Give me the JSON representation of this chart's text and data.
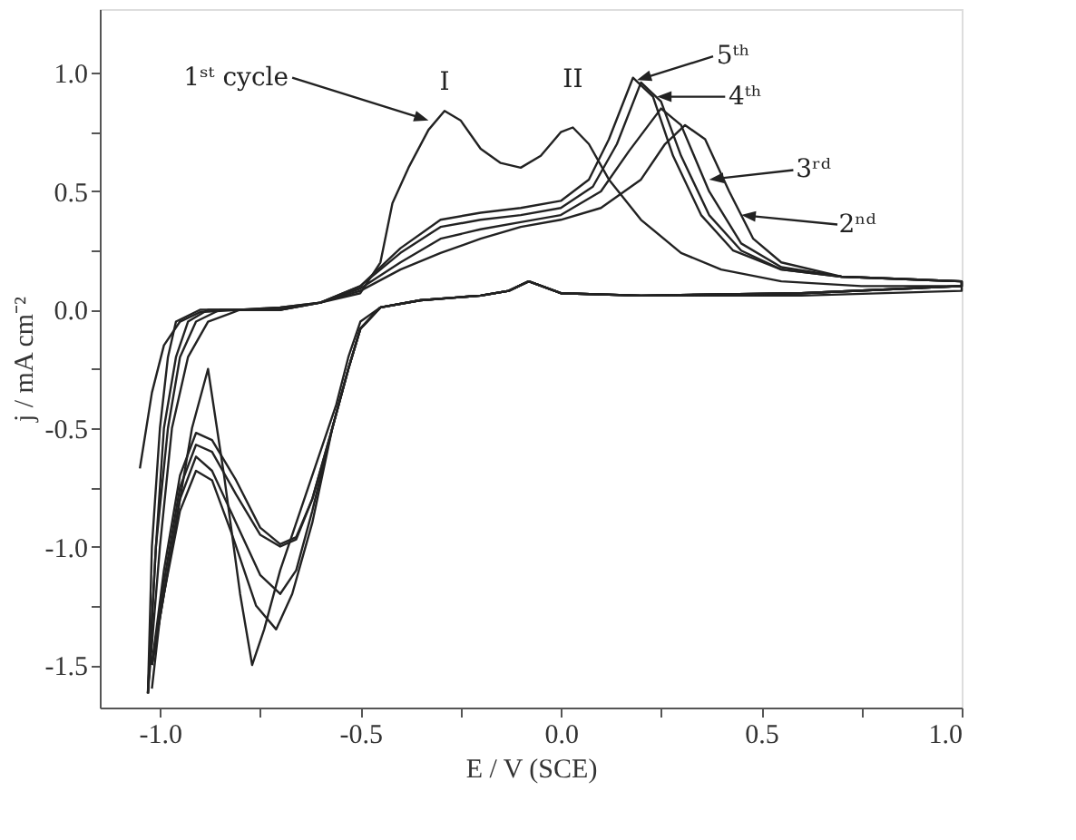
{
  "chart_data": {
    "type": "line",
    "xlabel": "E / V (SCE)",
    "ylabel": "j / mA cm⁻²",
    "xlim": [
      -1.15,
      1.0
    ],
    "ylim": [
      -1.68,
      1.27
    ],
    "xticks": [
      {
        "value": -1,
        "label": "-1.0"
      },
      {
        "value": -0.75,
        "label": null
      },
      {
        "value": -0.5,
        "label": "-0.5"
      },
      {
        "value": -0.25,
        "label": null
      },
      {
        "value": 0,
        "label": "0.0"
      },
      {
        "value": 0.25,
        "label": null
      },
      {
        "value": 0.5,
        "label": "0.5"
      },
      {
        "value": 0.75,
        "label": null
      },
      {
        "value": 1,
        "label": "1.0"
      }
    ],
    "yticks": [
      {
        "value": -1.5,
        "label": "-1.5"
      },
      {
        "value": -1.25,
        "label": null
      },
      {
        "value": -1,
        "label": "-1.0"
      },
      {
        "value": -0.75,
        "label": null
      },
      {
        "value": -0.5,
        "label": "-0.5"
      },
      {
        "value": -0.25,
        "label": null
      },
      {
        "value": 0,
        "label": "0.0"
      },
      {
        "value": 0.25,
        "label": null
      },
      {
        "value": 0.5,
        "label": "0.5"
      },
      {
        "value": 0.75,
        "label": null
      },
      {
        "value": 1,
        "label": "1.0"
      }
    ],
    "series": [
      {
        "color": "#222222",
        "x": [
          -1.05,
          -1.02,
          -0.99,
          -0.95,
          -0.9,
          -0.8,
          -0.7,
          -0.6,
          -0.5,
          -0.45,
          -0.42,
          -0.38,
          -0.33,
          -0.29,
          -0.25,
          -0.2,
          -0.15,
          -0.1,
          -0.05,
          0.0,
          0.03,
          0.07,
          0.12,
          0.2,
          0.3,
          0.4,
          0.55,
          0.75,
          1.0,
          1.0,
          0.6,
          0.2,
          0.0,
          -0.08,
          -0.13,
          -0.2,
          -0.35,
          -0.45,
          -0.5,
          -0.53,
          -0.56,
          -0.6,
          -0.65,
          -0.7,
          -0.74,
          -0.77,
          -0.8,
          -0.84,
          -0.88,
          -0.92,
          -0.97,
          -1.0,
          -1.02
        ],
        "values": [
          -0.67,
          -0.35,
          -0.15,
          -0.05,
          -0.01,
          0.0,
          0.01,
          0.03,
          0.07,
          0.2,
          0.45,
          0.6,
          0.76,
          0.84,
          0.8,
          0.68,
          0.62,
          0.6,
          0.65,
          0.75,
          0.77,
          0.7,
          0.55,
          0.38,
          0.24,
          0.17,
          0.12,
          0.1,
          0.1,
          0.08,
          0.06,
          0.06,
          0.07,
          0.12,
          0.08,
          0.06,
          0.04,
          0.01,
          -0.05,
          -0.2,
          -0.4,
          -0.6,
          -0.85,
          -1.1,
          -1.35,
          -1.5,
          -1.2,
          -0.7,
          -0.25,
          -0.5,
          -1.0,
          -1.3,
          -1.6
        ]
      },
      {
        "color": "#222222",
        "x": [
          -1.03,
          -1.0,
          -0.97,
          -0.93,
          -0.88,
          -0.8,
          -0.7,
          -0.6,
          -0.5,
          -0.4,
          -0.3,
          -0.2,
          -0.1,
          0.0,
          0.1,
          0.2,
          0.26,
          0.31,
          0.36,
          0.42,
          0.48,
          0.55,
          0.7,
          1.0,
          1.0,
          0.6,
          0.2,
          0.0,
          -0.08,
          -0.13,
          -0.2,
          -0.35,
          -0.45,
          -0.5,
          -0.53,
          -0.57,
          -0.62,
          -0.67,
          -0.71,
          -0.76,
          -0.82,
          -0.87,
          -0.91,
          -0.95,
          -0.99,
          -1.02
        ],
        "values": [
          -1.62,
          -1.0,
          -0.5,
          -0.2,
          -0.05,
          0.0,
          0.01,
          0.03,
          0.08,
          0.17,
          0.24,
          0.3,
          0.35,
          0.38,
          0.43,
          0.55,
          0.7,
          0.78,
          0.72,
          0.5,
          0.3,
          0.2,
          0.14,
          0.12,
          0.1,
          0.07,
          0.06,
          0.07,
          0.12,
          0.08,
          0.06,
          0.04,
          0.01,
          -0.08,
          -0.25,
          -0.5,
          -0.9,
          -1.2,
          -1.35,
          -1.25,
          -0.95,
          -0.72,
          -0.68,
          -0.85,
          -1.2,
          -1.5
        ]
      },
      {
        "color": "#222222",
        "x": [
          -1.03,
          -1.01,
          -0.98,
          -0.95,
          -0.91,
          -0.85,
          -0.7,
          -0.6,
          -0.5,
          -0.4,
          -0.3,
          -0.2,
          -0.1,
          0.0,
          0.1,
          0.17,
          0.25,
          0.3,
          0.37,
          0.45,
          0.55,
          0.7,
          1.0,
          1.0,
          0.6,
          0.2,
          0.0,
          -0.08,
          -0.13,
          -0.2,
          -0.35,
          -0.45,
          -0.5,
          -0.53,
          -0.57,
          -0.62,
          -0.66,
          -0.7,
          -0.75,
          -0.81,
          -0.87,
          -0.91,
          -0.95,
          -0.99,
          -1.02
        ],
        "values": [
          -1.62,
          -1.0,
          -0.5,
          -0.2,
          -0.05,
          0.0,
          0.0,
          0.03,
          0.09,
          0.2,
          0.3,
          0.34,
          0.37,
          0.4,
          0.5,
          0.67,
          0.85,
          0.78,
          0.5,
          0.28,
          0.18,
          0.14,
          0.12,
          0.1,
          0.07,
          0.06,
          0.07,
          0.12,
          0.08,
          0.06,
          0.04,
          0.01,
          -0.08,
          -0.25,
          -0.5,
          -0.85,
          -1.1,
          -1.2,
          -1.12,
          -0.9,
          -0.68,
          -0.62,
          -0.8,
          -1.2,
          -1.5
        ]
      },
      {
        "color": "#222222",
        "x": [
          -1.03,
          -1.01,
          -0.99,
          -0.96,
          -0.93,
          -0.88,
          -0.7,
          -0.6,
          -0.5,
          -0.4,
          -0.3,
          -0.2,
          -0.1,
          0.0,
          0.08,
          0.14,
          0.2,
          0.25,
          0.3,
          0.37,
          0.45,
          0.55,
          0.7,
          1.0,
          1.0,
          0.6,
          0.2,
          0.0,
          -0.08,
          -0.13,
          -0.2,
          -0.35,
          -0.45,
          -0.5,
          -0.53,
          -0.57,
          -0.62,
          -0.66,
          -0.7,
          -0.75,
          -0.81,
          -0.87,
          -0.91,
          -0.95,
          -0.99,
          -1.02
        ],
        "values": [
          -1.62,
          -1.0,
          -0.5,
          -0.2,
          -0.05,
          0.0,
          0.0,
          0.03,
          0.1,
          0.24,
          0.35,
          0.38,
          0.4,
          0.43,
          0.52,
          0.7,
          0.96,
          0.88,
          0.65,
          0.4,
          0.25,
          0.17,
          0.14,
          0.12,
          0.1,
          0.07,
          0.06,
          0.07,
          0.12,
          0.08,
          0.06,
          0.04,
          0.01,
          -0.08,
          -0.25,
          -0.5,
          -0.8,
          -0.97,
          -1.0,
          -0.95,
          -0.78,
          -0.6,
          -0.57,
          -0.75,
          -1.15,
          -1.5
        ]
      },
      {
        "color": "#222222",
        "x": [
          -1.03,
          -1.02,
          -1.0,
          -0.98,
          -0.96,
          -0.9,
          -0.7,
          -0.6,
          -0.5,
          -0.4,
          -0.3,
          -0.2,
          -0.1,
          0.0,
          0.07,
          0.12,
          0.18,
          0.23,
          0.28,
          0.35,
          0.43,
          0.55,
          0.7,
          1.0,
          1.0,
          0.6,
          0.2,
          0.0,
          -0.08,
          -0.13,
          -0.2,
          -0.35,
          -0.45,
          -0.5,
          -0.53,
          -0.57,
          -0.62,
          -0.66,
          -0.7,
          -0.75,
          -0.81,
          -0.87,
          -0.91,
          -0.95,
          -0.99,
          -1.02
        ],
        "values": [
          -1.62,
          -1.0,
          -0.5,
          -0.2,
          -0.05,
          0.0,
          0.0,
          0.03,
          0.1,
          0.26,
          0.38,
          0.41,
          0.43,
          0.46,
          0.55,
          0.72,
          0.98,
          0.9,
          0.65,
          0.4,
          0.25,
          0.17,
          0.14,
          0.12,
          0.1,
          0.07,
          0.06,
          0.07,
          0.12,
          0.08,
          0.06,
          0.04,
          0.01,
          -0.08,
          -0.25,
          -0.5,
          -0.8,
          -0.96,
          -0.99,
          -0.92,
          -0.72,
          -0.55,
          -0.52,
          -0.7,
          -1.1,
          -1.5
        ]
      }
    ],
    "annotations": [
      "1ˢᵗ cycle",
      {
        "text": "I",
        "x": -0.29,
        "y": 0.84
      },
      {
        "text": "II",
        "x": 0.03,
        "y": 0.77
      },
      "5ᵗʰ",
      {
        "text": "4ᵗʰ",
        "x": 0.24,
        "y": 0.9
      },
      "3ʳᵈ",
      "2ⁿᵈ"
    ]
  }
}
